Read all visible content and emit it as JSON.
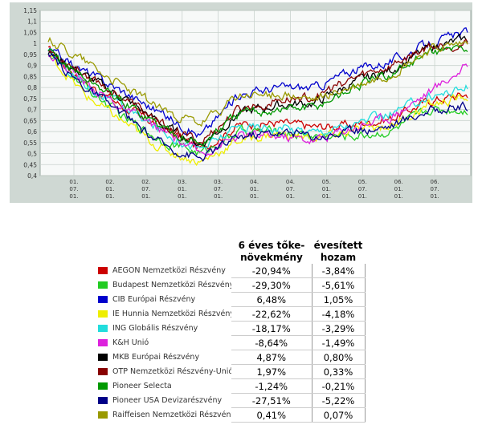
{
  "chart_data": {
    "type": "line",
    "y_ticks": [
      "1,15",
      "1,1",
      "1,05",
      "1",
      "0,95",
      "0,9",
      "0,85",
      "0,8",
      "0,75",
      "0,7",
      "0,65",
      "0,6",
      "0,55",
      "0,5",
      "0,45",
      "0,4"
    ],
    "ylim": [
      0.4,
      1.15
    ],
    "x_ticks": [
      [
        "01.",
        "07.",
        "01."
      ],
      [
        "02.",
        "01.",
        "01."
      ],
      [
        "02.",
        "07.",
        "01."
      ],
      [
        "03.",
        "01.",
        "01."
      ],
      [
        "03.",
        "07.",
        "01."
      ],
      [
        "04.",
        "01.",
        "01."
      ],
      [
        "04.",
        "07.",
        "01."
      ],
      [
        "05.",
        "01.",
        "01."
      ],
      [
        "05.",
        "07.",
        "01."
      ],
      [
        "06.",
        "01.",
        "01."
      ],
      [
        "06.",
        "07.",
        "01."
      ]
    ],
    "grid": true,
    "series": [
      {
        "name": "AEGON Nemzetközi Részvény",
        "color": "#cc0000",
        "values": [
          0.97,
          0.82,
          0.71,
          0.62,
          0.52,
          0.63,
          0.64,
          0.62,
          0.63,
          0.66,
          0.74,
          0.77
        ]
      },
      {
        "name": "Budapest Nemzetközi Részvény",
        "color": "#22cc22",
        "values": [
          0.96,
          0.8,
          0.66,
          0.56,
          0.5,
          0.6,
          0.6,
          0.58,
          0.58,
          0.6,
          0.7,
          0.7
        ]
      },
      {
        "name": "CIB Európai Részvény",
        "color": "#0000cc",
        "values": [
          0.97,
          0.87,
          0.78,
          0.68,
          0.58,
          0.77,
          0.8,
          0.8,
          0.88,
          0.92,
          1.0,
          1.05
        ]
      },
      {
        "name": "IE Hunnia Nemzetközi Részvény",
        "color": "#eeee00",
        "values": [
          0.95,
          0.76,
          0.64,
          0.52,
          0.46,
          0.56,
          0.59,
          0.57,
          0.6,
          0.63,
          0.72,
          0.76
        ]
      },
      {
        "name": "ING Globális Részvény",
        "color": "#22dddd",
        "values": [
          0.96,
          0.81,
          0.71,
          0.6,
          0.52,
          0.62,
          0.62,
          0.6,
          0.63,
          0.68,
          0.76,
          0.8
        ]
      },
      {
        "name": "K&H Unió",
        "color": "#dd22dd",
        "values": [
          0.96,
          0.82,
          0.7,
          0.6,
          0.5,
          0.58,
          0.58,
          0.56,
          0.62,
          0.67,
          0.78,
          0.9
        ]
      },
      {
        "name": "MKB Európai Részvény",
        "color": "#000000",
        "values": [
          0.96,
          0.85,
          0.75,
          0.63,
          0.54,
          0.68,
          0.72,
          0.73,
          0.82,
          0.88,
          0.98,
          1.02
        ]
      },
      {
        "name": "OTP Nemzetközi Részvény-Unió",
        "color": "#880000",
        "values": [
          0.97,
          0.86,
          0.75,
          0.63,
          0.55,
          0.7,
          0.74,
          0.76,
          0.84,
          0.9,
          0.99,
          1.0
        ]
      },
      {
        "name": "Pioneer Selecta",
        "color": "#009900",
        "values": [
          0.96,
          0.84,
          0.73,
          0.62,
          0.54,
          0.68,
          0.7,
          0.71,
          0.8,
          0.86,
          0.96,
          0.98
        ]
      },
      {
        "name": "Pioneer USA Devizarészvény",
        "color": "#000088",
        "values": [
          0.94,
          0.8,
          0.67,
          0.54,
          0.48,
          0.58,
          0.6,
          0.58,
          0.6,
          0.63,
          0.7,
          0.71
        ]
      },
      {
        "name": "Raiffeisen Nemzetközi Részvény",
        "color": "#999900",
        "values": [
          1.02,
          0.92,
          0.8,
          0.7,
          0.63,
          0.76,
          0.77,
          0.74,
          0.8,
          0.86,
          0.97,
          1.0
        ]
      }
    ]
  },
  "table": {
    "header_col1": "6 éves tőke-növekmény",
    "header_col2": "évesített hozam",
    "rows": [
      {
        "name": "AEGON Nemzetközi Részvény",
        "color": "#cc0000",
        "growth": "-20,94%",
        "annual": "-3,84%"
      },
      {
        "name": "Budapest Nemzetközi Részvény",
        "color": "#22cc22",
        "growth": "-29,30%",
        "annual": "-5,61%"
      },
      {
        "name": "CIB Európai Részvény",
        "color": "#0000cc",
        "growth": "6,48%",
        "annual": "1,05%"
      },
      {
        "name": "IE Hunnia Nemzetközi Részvény",
        "color": "#eeee00",
        "growth": "-22,62%",
        "annual": "-4,18%"
      },
      {
        "name": "ING Globális Részvény",
        "color": "#22dddd",
        "growth": "-18,17%",
        "annual": "-3,29%"
      },
      {
        "name": "K&H Unió",
        "color": "#dd22dd",
        "growth": "-8,64%",
        "annual": "-1,49%"
      },
      {
        "name": "MKB Európai Részvény",
        "color": "#000000",
        "growth": "4,87%",
        "annual": "0,80%"
      },
      {
        "name": "OTP Nemzetközi Részvény-Unió",
        "color": "#880000",
        "growth": "1,97%",
        "annual": "0,33%"
      },
      {
        "name": "Pioneer Selecta",
        "color": "#009900",
        "growth": "-1,24%",
        "annual": "-0,21%"
      },
      {
        "name": "Pioneer USA Devizarészvény",
        "color": "#000088",
        "growth": "-27,51%",
        "annual": "-5,22%"
      },
      {
        "name": "Raiffeisen Nemzetközi Részvény",
        "color": "#999900",
        "growth": "0,41%",
        "annual": "0,07%"
      }
    ]
  }
}
